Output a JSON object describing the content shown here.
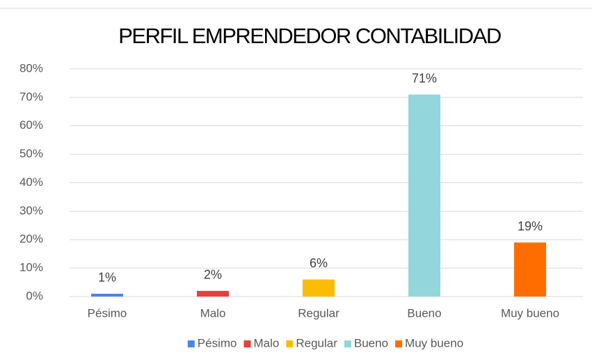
{
  "chart_data": {
    "type": "bar",
    "title": "PERFIL EMPRENDEDOR CONTABILIDAD",
    "categories": [
      "Pésimo",
      "Malo",
      "Regular",
      "Bueno",
      "Muy bueno"
    ],
    "values": [
      1,
      2,
      6,
      71,
      19
    ],
    "value_labels": [
      "1%",
      "2%",
      "6%",
      "71%",
      "19%"
    ],
    "colors": [
      "#4a86e8",
      "#e8403a",
      "#fbbc04",
      "#93d7dd",
      "#ff6d01"
    ],
    "ylim": [
      0,
      80
    ],
    "yticks": [
      {
        "value": 0,
        "label": "0%"
      },
      {
        "value": 10,
        "label": "10%"
      },
      {
        "value": 20,
        "label": "20%"
      },
      {
        "value": 30,
        "label": "30%"
      },
      {
        "value": 40,
        "label": "40%"
      },
      {
        "value": 50,
        "label": "50%"
      },
      {
        "value": 60,
        "label": "60%"
      },
      {
        "value": 70,
        "label": "70%"
      },
      {
        "value": 80,
        "label": "80%"
      }
    ],
    "grid": true,
    "legend": "bottom"
  }
}
